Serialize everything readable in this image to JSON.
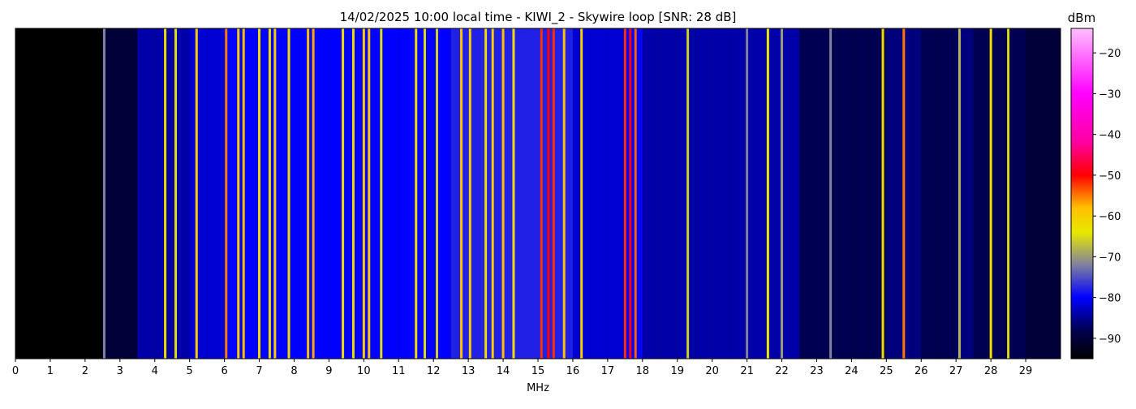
{
  "chart_data": {
    "type": "waterfall",
    "title": "14/02/2025 10:00 local time - KIWI_2 - Skywire loop [SNR: 28 dB]",
    "xlabel": "MHz",
    "colorbar_label": "dBm",
    "xlim": [
      0,
      30
    ],
    "xticks": [
      0,
      1,
      2,
      3,
      4,
      5,
      6,
      7,
      8,
      9,
      10,
      11,
      12,
      13,
      14,
      15,
      16,
      17,
      18,
      19,
      20,
      21,
      22,
      23,
      24,
      25,
      26,
      27,
      28,
      29
    ],
    "clim": [
      -95,
      -14
    ],
    "cticks": [
      {
        "value": -20,
        "label": "−20"
      },
      {
        "value": -30,
        "label": "−30"
      },
      {
        "value": -40,
        "label": "−40"
      },
      {
        "value": -50,
        "label": "−50"
      },
      {
        "value": -60,
        "label": "−60"
      },
      {
        "value": -70,
        "label": "−70"
      },
      {
        "value": -80,
        "label": "−80"
      },
      {
        "value": -90,
        "label": "−90"
      }
    ],
    "colormap": [
      {
        "value": -95,
        "color": "#000000"
      },
      {
        "value": -88,
        "color": "#000050"
      },
      {
        "value": -80,
        "color": "#0000ff"
      },
      {
        "value": -72,
        "color": "#8080a0"
      },
      {
        "value": -64,
        "color": "#e8e800"
      },
      {
        "value": -58,
        "color": "#ffc000"
      },
      {
        "value": -50,
        "color": "#ff0000"
      },
      {
        "value": -42,
        "color": "#ff00a0"
      },
      {
        "value": -30,
        "color": "#ff00ff"
      },
      {
        "value": -14,
        "color": "#ffc0ff"
      }
    ],
    "floor": {
      "x": [
        0,
        0.5,
        1,
        1.5,
        2,
        2.5,
        3,
        3.5,
        4,
        4.5,
        5,
        5.5,
        6,
        6.5,
        7,
        7.5,
        8,
        8.5,
        9,
        9.5,
        10,
        10.5,
        11,
        11.5,
        12,
        12.5,
        13,
        13.5,
        14,
        14.5,
        15,
        15.5,
        16,
        16.5,
        17,
        17.5,
        18,
        18.5,
        19,
        19.5,
        20,
        20.5,
        21,
        21.5,
        22,
        22.5,
        23,
        23.5,
        24,
        24.5,
        25,
        25.5,
        26,
        26.5,
        27,
        27.5,
        28,
        28.5,
        29,
        29.5
      ],
      "values": [
        -95,
        -95,
        -95,
        -95,
        -95,
        -90,
        -90,
        -84,
        -84,
        -84,
        -82,
        -82,
        -80,
        -80,
        -80,
        -80,
        -80,
        -80,
        -80,
        -80,
        -80,
        -80,
        -80,
        -80,
        -80,
        -78,
        -78,
        -78,
        -78,
        -78,
        -78,
        -78,
        -82,
        -82,
        -82,
        -80,
        -84,
        -84,
        -84,
        -84,
        -84,
        -84,
        -84,
        -84,
        -84,
        -88,
        -88,
        -88,
        -88,
        -88,
        -86,
        -86,
        -88,
        -88,
        -86,
        -88,
        -88,
        -88,
        -90,
        -90
      ]
    },
    "signals": {
      "x": [
        2.55,
        4.3,
        4.6,
        5.2,
        6.05,
        6.4,
        6.55,
        7.0,
        7.3,
        7.45,
        7.85,
        8.4,
        8.55,
        9.4,
        9.7,
        10.0,
        10.15,
        10.5,
        11.5,
        11.75,
        12.1,
        12.8,
        13.05,
        13.5,
        13.7,
        14.0,
        14.3,
        15.1,
        15.3,
        15.45,
        15.75,
        16.25,
        17.5,
        17.65,
        17.8,
        19.3,
        21.0,
        21.6,
        22.0,
        23.4,
        24.9,
        25.5,
        27.1,
        28.0,
        28.5
      ],
      "values": [
        -72,
        -62,
        -65,
        -60,
        -55,
        -60,
        -58,
        -62,
        -62,
        -60,
        -62,
        -58,
        -57,
        -62,
        -62,
        -60,
        -58,
        -65,
        -62,
        -65,
        -66,
        -58,
        -60,
        -62,
        -60,
        -58,
        -62,
        -52,
        -50,
        -52,
        -58,
        -60,
        -52,
        -50,
        -54,
        -66,
        -72,
        -64,
        -70,
        -72,
        -62,
        -55,
        -68,
        -62,
        -65
      ]
    }
  }
}
